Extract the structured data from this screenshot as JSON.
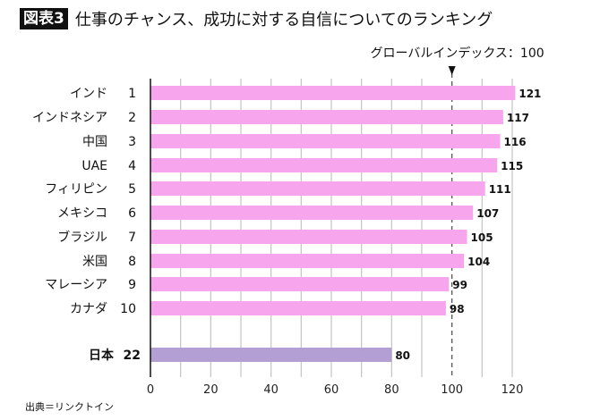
{
  "header": {
    "badge": "図表3",
    "title": "仕事のチャンス、成功に対する自信についてのランキング"
  },
  "source": "出典＝リンクトイン",
  "chart_data": {
    "type": "bar",
    "orientation": "horizontal",
    "categories": [
      "インド",
      "インドネシア",
      "中国",
      "UAE",
      "フィリピン",
      "メキシコ",
      "ブラジル",
      "米国",
      "マレーシア",
      "カナダ",
      "日本"
    ],
    "ranks": [
      "1",
      "2",
      "3",
      "4",
      "5",
      "6",
      "7",
      "8",
      "9",
      "10",
      "22"
    ],
    "values": [
      121,
      117,
      116,
      115,
      111,
      107,
      105,
      104,
      99,
      98,
      80
    ],
    "xlim": [
      0,
      120
    ],
    "xticks": [
      "0",
      "20",
      "40",
      "60",
      "80",
      "100",
      "120"
    ],
    "grid": true,
    "reference_line": {
      "value": 100,
      "label": "グローバルインデックス：100"
    },
    "colors": {
      "default": "#f7a6ee",
      "highlight": "#b39fd3"
    }
  }
}
